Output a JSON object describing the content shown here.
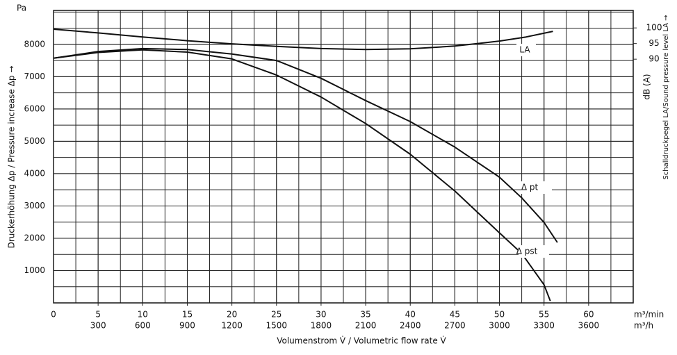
{
  "chart_data": {
    "type": "line",
    "y_unit": "Pa",
    "x_unit": "m³/min",
    "x2_unit": "m³/h",
    "y2_unit": "dB (A)",
    "xlabel": "Volumenstrom V̇ / Volumetric flow rate V̇",
    "ylabel": "Druckerhöhung Δp / Pressure increase Δp →",
    "y2label": "Schalldruckpegel LA/Sound pressure level LA →",
    "xlim": [
      0,
      65
    ],
    "xticks": [
      0,
      5,
      10,
      15,
      20,
      25,
      30,
      35,
      40,
      45,
      50,
      55,
      60
    ],
    "x2lim": [
      0,
      3900
    ],
    "x2ticks": [
      300,
      600,
      900,
      1200,
      1500,
      1800,
      2100,
      2400,
      2700,
      3000,
      3300,
      3600
    ],
    "ylim": [
      0,
      9050
    ],
    "yticks": [
      1000,
      2000,
      3000,
      4000,
      5000,
      6000,
      7000,
      8000
    ],
    "y2lim": [
      12,
      105.6
    ],
    "y2ticks": [
      90,
      95,
      100
    ],
    "grid": true,
    "series": [
      {
        "name": "LA",
        "color": "#111111",
        "axis": "y2",
        "x": [
          0,
          5,
          10,
          15,
          20,
          25,
          30,
          35,
          40,
          45,
          47.5,
          50,
          53,
          56
        ],
        "values": [
          99.6,
          98.4,
          97.1,
          95.9,
          94.9,
          94.1,
          93.4,
          93.1,
          93.3,
          94.2,
          95,
          95.8,
          97.1,
          98.9
        ]
      },
      {
        "name": "Δ pt",
        "color": "#111111",
        "x": [
          0,
          5,
          10,
          15,
          20,
          25,
          30,
          35,
          40,
          45,
          50,
          52.5,
          55,
          56.5
        ],
        "values": [
          7570,
          7780,
          7870,
          7840,
          7700,
          7500,
          6950,
          6260,
          5610,
          4820,
          3890,
          3250,
          2490,
          1870
        ]
      },
      {
        "name": "Δ pst",
        "color": "#111111",
        "x": [
          0,
          5,
          10,
          15,
          20,
          25,
          30,
          35,
          40,
          45,
          50,
          52.5,
          55,
          55.7
        ],
        "values": [
          7570,
          7750,
          7830,
          7760,
          7550,
          7050,
          6370,
          5550,
          4600,
          3460,
          2170,
          1530,
          560,
          60
        ]
      }
    ]
  }
}
